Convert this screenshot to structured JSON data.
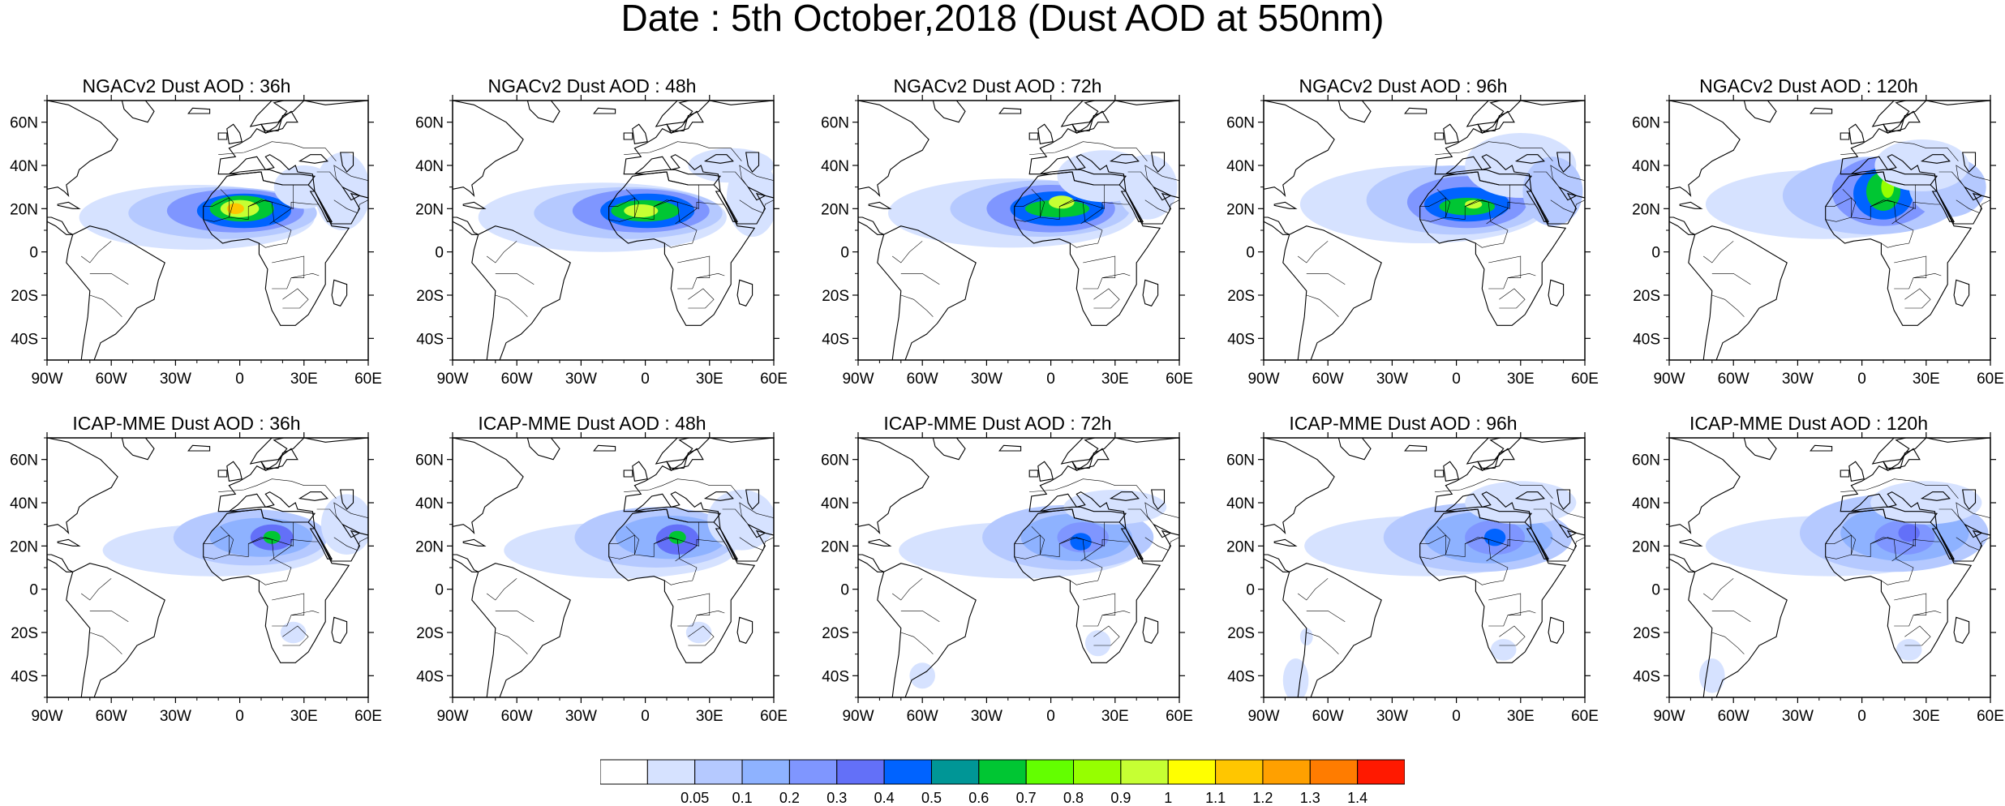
{
  "title": "Date : 5th October,2018 (Dust AOD at 550nm)",
  "panels": [
    {
      "title": "NGACv2 Dust AOD : 36h",
      "model": "NGACv2",
      "lead": "36h"
    },
    {
      "title": "NGACv2 Dust AOD : 48h",
      "model": "NGACv2",
      "lead": "48h"
    },
    {
      "title": "NGACv2 Dust AOD : 72h",
      "model": "NGACv2",
      "lead": "72h"
    },
    {
      "title": "NGACv2 Dust AOD : 96h",
      "model": "NGACv2",
      "lead": "96h"
    },
    {
      "title": "NGACv2 Dust AOD : 120h",
      "model": "NGACv2",
      "lead": "120h"
    },
    {
      "title": "ICAP-MME Dust AOD : 36h",
      "model": "ICAP-MME",
      "lead": "36h"
    },
    {
      "title": "ICAP-MME Dust AOD : 48h",
      "model": "ICAP-MME",
      "lead": "48h"
    },
    {
      "title": "ICAP-MME Dust AOD : 72h",
      "model": "ICAP-MME",
      "lead": "72h"
    },
    {
      "title": "ICAP-MME Dust AOD : 96h",
      "model": "ICAP-MME",
      "lead": "96h"
    },
    {
      "title": "ICAP-MME Dust AOD : 120h",
      "model": "ICAP-MME",
      "lead": "120h"
    }
  ],
  "axes": {
    "lon_ticks": [
      "90W",
      "60W",
      "30W",
      "0",
      "30E",
      "60E"
    ],
    "lat_ticks": [
      "60N",
      "40N",
      "20N",
      "0",
      "20S",
      "40S"
    ],
    "lon_range": [
      -90,
      60
    ],
    "lat_range": [
      -50,
      70
    ]
  },
  "colorbar": {
    "levels": [
      "0.05",
      "0.1",
      "0.2",
      "0.3",
      "0.4",
      "0.5",
      "0.6",
      "0.7",
      "0.8",
      "0.9",
      "1",
      "1.1",
      "1.2",
      "1.3",
      "1.4"
    ],
    "colors": [
      "#ffffff",
      "#d6e2ff",
      "#b5c9ff",
      "#8eb2ff",
      "#7f96ff",
      "#6370f8",
      "#0063ff",
      "#009696",
      "#00c633",
      "#63ff00",
      "#96ff00",
      "#c6ff33",
      "#ffff00",
      "#ffc600",
      "#ffa000",
      "#ff7c00",
      "#ff1900"
    ]
  }
}
